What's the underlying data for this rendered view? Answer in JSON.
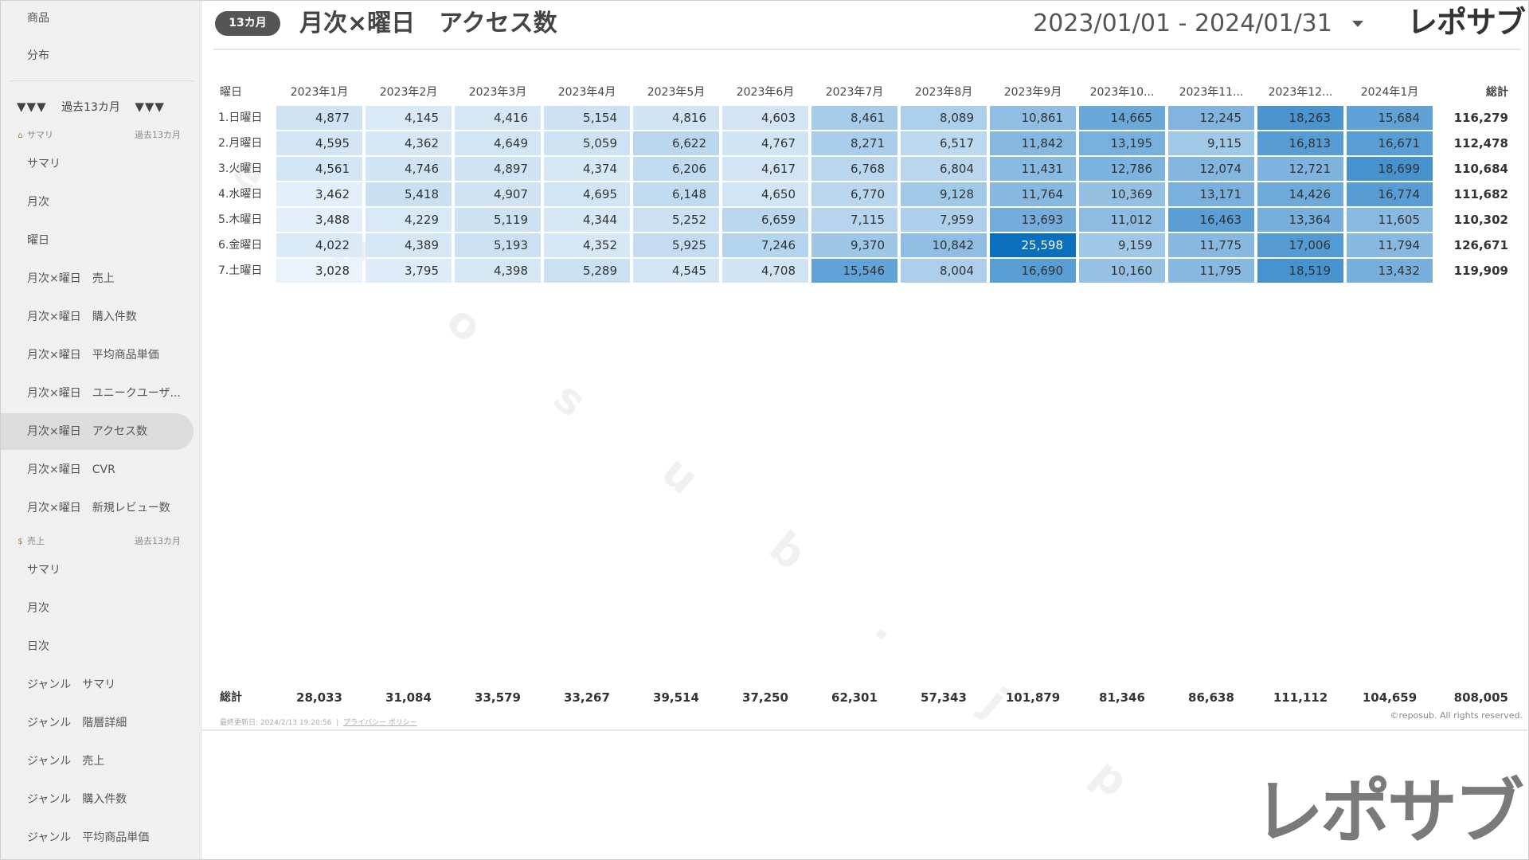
{
  "sidebar": {
    "top_items": [
      {
        "label": "商品"
      },
      {
        "label": "分布"
      }
    ],
    "section": {
      "label": "過去13カ月",
      "prefix": "▼▼▼",
      "suffix": "▼▼▼"
    },
    "groups": [
      {
        "icon": "house-icon",
        "icon_glyph": "⌂",
        "label": "サマリ",
        "period": "過去13カ月",
        "items": [
          {
            "label": "サマリ"
          },
          {
            "label": "月次"
          },
          {
            "label": "曜日"
          },
          {
            "label": "月次×曜日　売上"
          },
          {
            "label": "月次×曜日　購入件数"
          },
          {
            "label": "月次×曜日　平均商品単価"
          },
          {
            "label": "月次×曜日　ユニークユーザ..."
          },
          {
            "label": "月次×曜日　アクセス数",
            "active": true
          },
          {
            "label": "月次×曜日　CVR"
          },
          {
            "label": "月次×曜日　新規レビュー数"
          }
        ]
      },
      {
        "icon": "money-bag-icon",
        "icon_glyph": "$",
        "label": "売上",
        "period": "過去13カ月",
        "items": [
          {
            "label": "サマリ"
          },
          {
            "label": "月次"
          },
          {
            "label": "日次"
          },
          {
            "label": "ジャンル　サマリ"
          },
          {
            "label": "ジャンル　階層詳細"
          },
          {
            "label": "ジャンル　売上"
          },
          {
            "label": "ジャンル　購入件数"
          },
          {
            "label": "ジャンル　平均商品単価"
          }
        ]
      }
    ]
  },
  "header": {
    "period_badge": "13カ月",
    "title": "月次×曜日　アクセス数",
    "date_range": "2023/01/01 - 2024/01/31",
    "logo": "レポサブ"
  },
  "table": {
    "corner_label": "曜日",
    "total_label": "総計",
    "columns": [
      "2023年1月",
      "2023年2月",
      "2023年3月",
      "2023年4月",
      "2023年5月",
      "2023年6月",
      "2023年7月",
      "2023年8月",
      "2023年9月",
      "2023年10...",
      "2023年11...",
      "2023年12...",
      "2024年1月"
    ],
    "rows": [
      {
        "label": "1.日曜日",
        "values": [
          "4,877",
          "4,145",
          "4,416",
          "5,154",
          "4,816",
          "4,603",
          "8,461",
          "8,089",
          "10,861",
          "14,665",
          "12,245",
          "18,263",
          "15,684"
        ],
        "total": "116,279"
      },
      {
        "label": "2.月曜日",
        "values": [
          "4,595",
          "4,362",
          "4,649",
          "5,059",
          "6,622",
          "4,767",
          "8,271",
          "6,517",
          "11,842",
          "13,195",
          "9,115",
          "16,813",
          "16,671"
        ],
        "total": "112,478"
      },
      {
        "label": "3.火曜日",
        "values": [
          "4,561",
          "4,746",
          "4,897",
          "4,374",
          "6,206",
          "4,617",
          "6,768",
          "6,804",
          "11,431",
          "12,786",
          "12,074",
          "12,721",
          "18,699"
        ],
        "total": "110,684"
      },
      {
        "label": "4.水曜日",
        "values": [
          "3,462",
          "5,418",
          "4,907",
          "4,695",
          "6,148",
          "4,650",
          "6,770",
          "9,128",
          "11,764",
          "10,369",
          "13,171",
          "14,426",
          "16,774"
        ],
        "total": "111,682"
      },
      {
        "label": "5.木曜日",
        "values": [
          "3,488",
          "4,229",
          "5,119",
          "4,344",
          "5,252",
          "6,659",
          "7,115",
          "7,959",
          "13,693",
          "11,012",
          "16,463",
          "13,364",
          "11,605"
        ],
        "total": "110,302"
      },
      {
        "label": "6.金曜日",
        "values": [
          "4,022",
          "4,389",
          "5,193",
          "4,352",
          "5,925",
          "7,246",
          "9,370",
          "10,842",
          "25,598",
          "9,159",
          "11,775",
          "17,006",
          "11,794"
        ],
        "total": "126,671"
      },
      {
        "label": "7.土曜日",
        "values": [
          "3,028",
          "3,795",
          "4,398",
          "5,289",
          "4,545",
          "4,708",
          "15,546",
          "8,004",
          "16,690",
          "10,160",
          "11,795",
          "18,519",
          "13,432"
        ],
        "total": "119,909"
      }
    ],
    "footer_totals": [
      "28,033",
      "31,084",
      "33,579",
      "33,267",
      "39,514",
      "37,250",
      "62,301",
      "57,343",
      "101,879",
      "81,346",
      "86,638",
      "111,112",
      "104,659"
    ],
    "grand_total": "808,005"
  },
  "heatmap_colors": {
    "low": "#eaf3fb",
    "high": "#0a6fbf"
  },
  "footer": {
    "last_updated": "最終更新日: 2024/2/13 19:20:56",
    "privacy_link": "プライバシー ポリシー",
    "copyright": "©reposub. All rights reserved."
  },
  "watermark": "reposub.jp",
  "brand_logo": "レポサブ"
}
